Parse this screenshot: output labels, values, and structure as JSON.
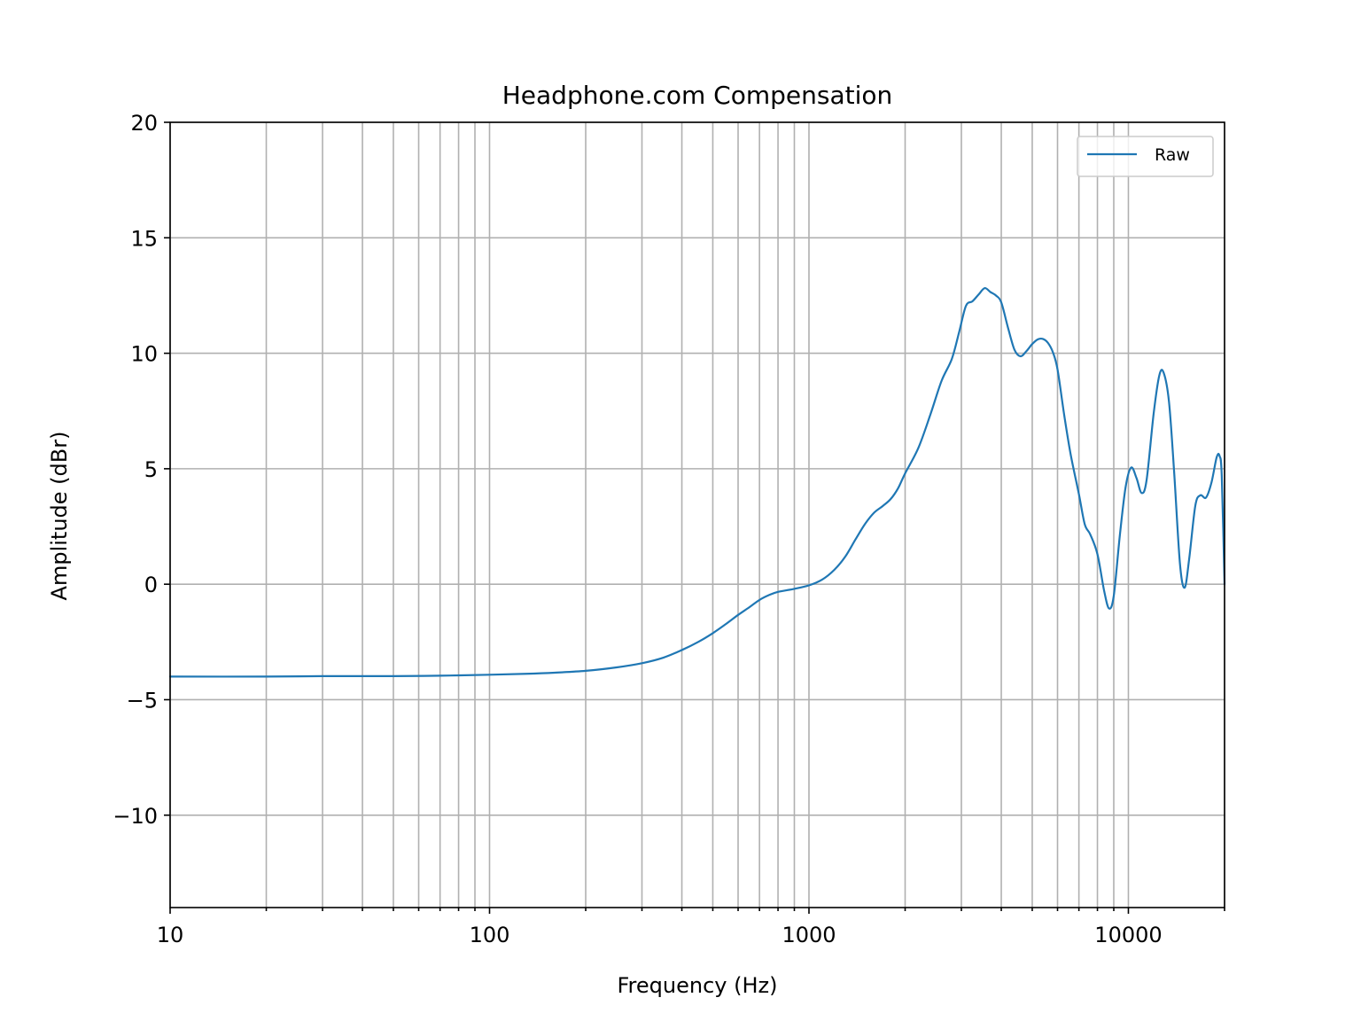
{
  "chart_data": {
    "type": "line",
    "title": "Headphone.com Compensation",
    "xlabel": "Frequency (Hz)",
    "ylabel": "Amplitude (dBr)",
    "xscale": "log",
    "xlim": [
      10,
      20000
    ],
    "ylim": [
      -14,
      20
    ],
    "grid": true,
    "legend_position": "top-right",
    "x_ticks": [
      {
        "value": 10,
        "label": "10"
      },
      {
        "value": 100,
        "label": "100"
      },
      {
        "value": 1000,
        "label": "1000"
      },
      {
        "value": 10000,
        "label": "10000"
      }
    ],
    "y_ticks": [
      {
        "value": -10,
        "label": "−10"
      },
      {
        "value": -5,
        "label": "−5"
      },
      {
        "value": 0,
        "label": "0"
      },
      {
        "value": 5,
        "label": "5"
      },
      {
        "value": 10,
        "label": "10"
      },
      {
        "value": 15,
        "label": "15"
      },
      {
        "value": 20,
        "label": "20"
      }
    ],
    "series": [
      {
        "name": "Raw",
        "color": "#1f77b4",
        "points": [
          [
            10,
            -4.0
          ],
          [
            20,
            -4.0
          ],
          [
            30,
            -3.98
          ],
          [
            50,
            -3.98
          ],
          [
            70,
            -3.96
          ],
          [
            100,
            -3.92
          ],
          [
            130,
            -3.88
          ],
          [
            160,
            -3.83
          ],
          [
            200,
            -3.75
          ],
          [
            250,
            -3.6
          ],
          [
            300,
            -3.42
          ],
          [
            350,
            -3.18
          ],
          [
            400,
            -2.85
          ],
          [
            450,
            -2.5
          ],
          [
            500,
            -2.12
          ],
          [
            550,
            -1.72
          ],
          [
            600,
            -1.33
          ],
          [
            650,
            -1.0
          ],
          [
            700,
            -0.68
          ],
          [
            750,
            -0.47
          ],
          [
            800,
            -0.33
          ],
          [
            900,
            -0.2
          ],
          [
            1000,
            -0.05
          ],
          [
            1100,
            0.2
          ],
          [
            1200,
            0.62
          ],
          [
            1300,
            1.2
          ],
          [
            1400,
            1.95
          ],
          [
            1500,
            2.62
          ],
          [
            1600,
            3.1
          ],
          [
            1700,
            3.38
          ],
          [
            1800,
            3.68
          ],
          [
            1900,
            4.15
          ],
          [
            2000,
            4.8
          ],
          [
            2200,
            5.9
          ],
          [
            2400,
            7.35
          ],
          [
            2600,
            8.8
          ],
          [
            2800,
            9.75
          ],
          [
            2950,
            10.9
          ],
          [
            3100,
            12.05
          ],
          [
            3250,
            12.25
          ],
          [
            3400,
            12.55
          ],
          [
            3550,
            12.82
          ],
          [
            3700,
            12.65
          ],
          [
            3850,
            12.5
          ],
          [
            4000,
            12.2
          ],
          [
            4200,
            11.1
          ],
          [
            4400,
            10.15
          ],
          [
            4600,
            9.87
          ],
          [
            4800,
            10.1
          ],
          [
            5000,
            10.4
          ],
          [
            5200,
            10.6
          ],
          [
            5400,
            10.62
          ],
          [
            5600,
            10.45
          ],
          [
            5800,
            10.05
          ],
          [
            6000,
            9.3
          ],
          [
            6300,
            7.3
          ],
          [
            6600,
            5.6
          ],
          [
            7000,
            3.9
          ],
          [
            7300,
            2.6
          ],
          [
            7600,
            2.15
          ],
          [
            8000,
            1.3
          ],
          [
            8400,
            -0.3
          ],
          [
            8700,
            -1.05
          ],
          [
            9000,
            -0.5
          ],
          [
            9400,
            2.1
          ],
          [
            9800,
            4.2
          ],
          [
            10200,
            5.05
          ],
          [
            10600,
            4.6
          ],
          [
            11000,
            3.95
          ],
          [
            11400,
            4.5
          ],
          [
            12000,
            7.4
          ],
          [
            12500,
            9.05
          ],
          [
            12900,
            9.15
          ],
          [
            13400,
            7.9
          ],
          [
            13900,
            4.9
          ],
          [
            14500,
            0.9
          ],
          [
            15000,
            -0.15
          ],
          [
            15500,
            1.1
          ],
          [
            16200,
            3.4
          ],
          [
            16800,
            3.85
          ],
          [
            17500,
            3.75
          ],
          [
            18200,
            4.4
          ],
          [
            18900,
            5.5
          ],
          [
            19300,
            5.55
          ],
          [
            19600,
            4.7
          ],
          [
            20000,
            0.0
          ]
        ]
      }
    ]
  }
}
